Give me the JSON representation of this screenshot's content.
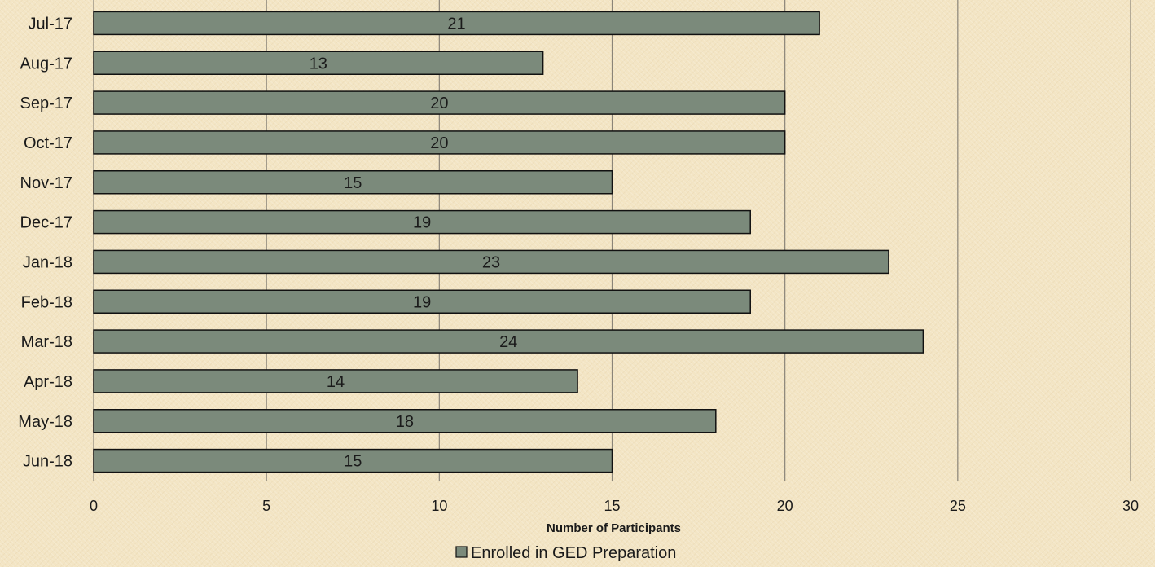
{
  "chart_data": {
    "type": "bar",
    "orientation": "horizontal",
    "categories": [
      "Jul-17",
      "Aug-17",
      "Sep-17",
      "Oct-17",
      "Nov-17",
      "Dec-17",
      "Jan-18",
      "Feb-18",
      "Mar-18",
      "Apr-18",
      "May-18",
      "Jun-18"
    ],
    "series": [
      {
        "name": "Enrolled in GED Preparation",
        "values": [
          21,
          13,
          20,
          20,
          15,
          19,
          23,
          19,
          24,
          14,
          18,
          15
        ],
        "color": "#7b8a7b"
      }
    ],
    "xlabel": "Number of Participants",
    "ylabel": "",
    "xlim": [
      0,
      30
    ],
    "xticks": [
      0,
      5,
      10,
      15,
      20,
      25,
      30
    ],
    "grid": true,
    "data_labels": true,
    "legend_position": "bottom"
  }
}
